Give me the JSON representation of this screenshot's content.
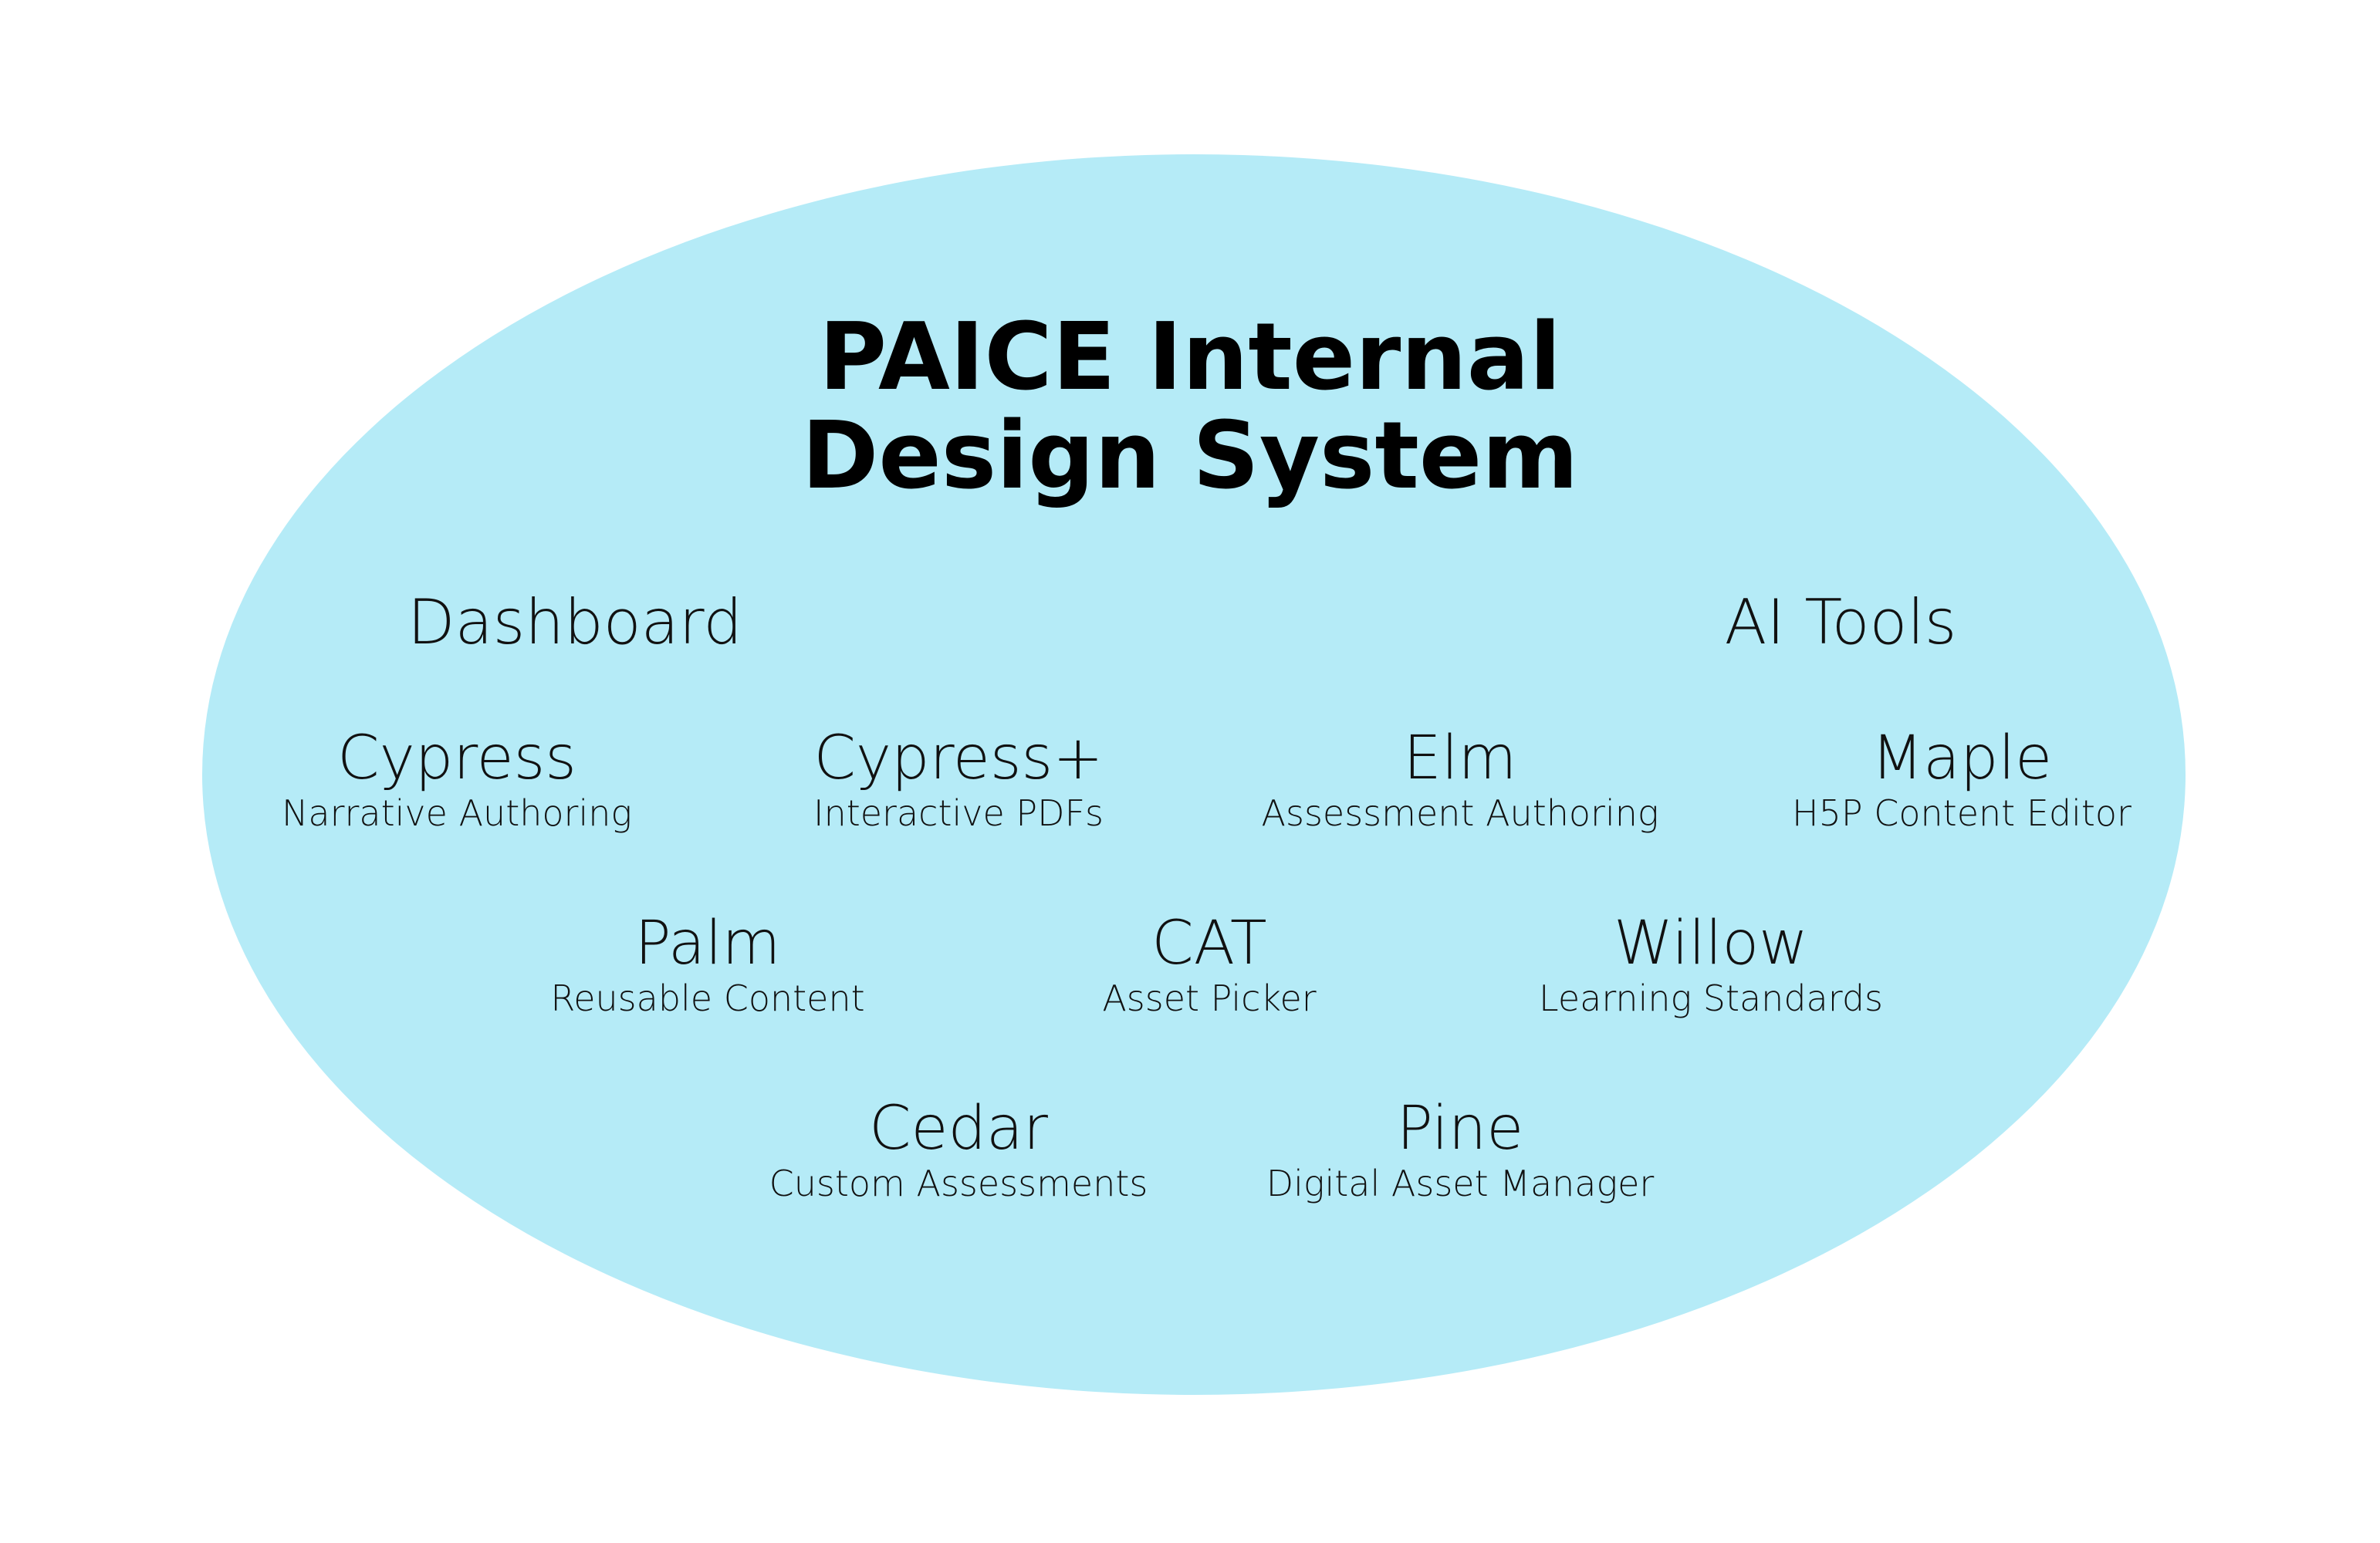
{
  "title": {
    "line1": "PAICE Internal",
    "line2": "Design System"
  },
  "groups": [
    {
      "label": "Dashboard"
    },
    {
      "label": "AI Tools"
    }
  ],
  "items": [
    {
      "name": "Cypress",
      "desc": "Narrative Authoring"
    },
    {
      "name": "Cypress+",
      "desc": "Interactive PDFs"
    },
    {
      "name": "Elm",
      "desc": "Assessment Authoring"
    },
    {
      "name": "Maple",
      "desc": "H5P Content Editor"
    },
    {
      "name": "Palm",
      "desc": "Reusable Content"
    },
    {
      "name": "CAT",
      "desc": "Asset Picker"
    },
    {
      "name": "Willow",
      "desc": "Learning Standards"
    },
    {
      "name": "Cedar",
      "desc": "Custom Assessments"
    },
    {
      "name": "Pine",
      "desc": "Digital Asset Manager"
    }
  ],
  "colors": {
    "ellipse_fill": "#b5ebf7",
    "text": "#000000"
  }
}
